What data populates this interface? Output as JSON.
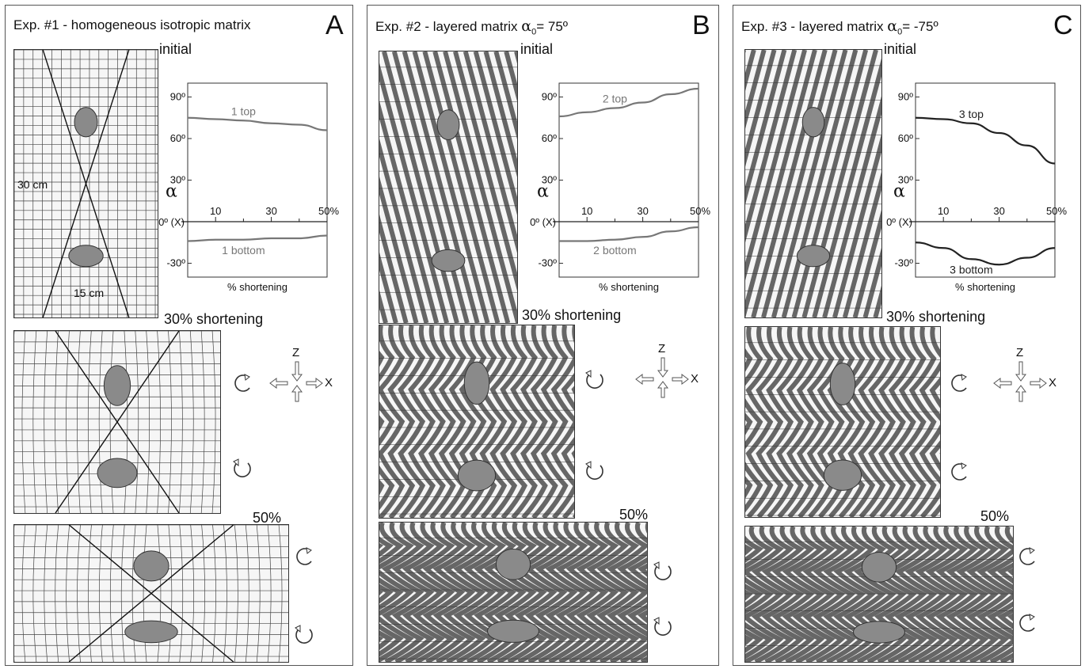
{
  "panels": [
    {
      "id": "A",
      "title": "Exp. #1 - homogeneous isotropic matrix",
      "letter": "A",
      "stages": {
        "initial": "initial",
        "mid": "30% shortening",
        "final": "50%"
      },
      "scale": {
        "height": "30 cm",
        "width": "15 cm"
      },
      "matrix": "isotropic-grid",
      "graph_color": "#777777",
      "graph_labels": {
        "top": "1 top",
        "bottom": "1 bottom"
      }
    },
    {
      "id": "B",
      "title_prefix": "Exp. #2 - layered matrix ",
      "title_alpha": "α",
      "title_sub": "0",
      "title_suffix": "= 75º",
      "letter": "B",
      "stages": {
        "initial": "initial",
        "mid": "30% shortening",
        "final": "50%"
      },
      "matrix": "layered-positive",
      "graph_color": "#777777",
      "graph_labels": {
        "top": "2 top",
        "bottom": "2 bottom"
      }
    },
    {
      "id": "C",
      "title_prefix": "Exp. #3 -  layered matrix ",
      "title_alpha": "α",
      "title_sub": "0",
      "title_suffix": "= -75º",
      "letter": "C",
      "stages": {
        "initial": "initial",
        "mid": "30% shortening",
        "final": "50%"
      },
      "matrix": "layered-negative",
      "graph_color": "#222222",
      "graph_labels": {
        "top": "3 top",
        "bottom": "3 bottom"
      }
    }
  ],
  "graph_axes": {
    "y_ticks": [
      "90º",
      "60º",
      "30º",
      "-30º"
    ],
    "x_ticks": [
      "10",
      "30",
      "50%"
    ],
    "origin_label": "0º (X)",
    "y_symbol": "α",
    "x_label": "% shortening"
  },
  "axis_indicator": {
    "z": "Z",
    "x": "X"
  },
  "chart_data": [
    {
      "type": "line",
      "x": [
        0,
        10,
        20,
        30,
        40,
        50
      ],
      "series": [
        {
          "name": "1 top",
          "values": [
            75,
            74,
            73,
            71,
            70,
            66
          ]
        },
        {
          "name": "1 bottom",
          "values": [
            -14,
            -13,
            -13,
            -12,
            -12,
            -10
          ]
        }
      ],
      "xlabel": "% shortening",
      "ylabel": "α",
      "xlim": [
        0,
        50
      ],
      "ylim": [
        -40,
        100
      ]
    },
    {
      "type": "line",
      "x": [
        0,
        10,
        20,
        30,
        40,
        50
      ],
      "series": [
        {
          "name": "2 top",
          "values": [
            76,
            79,
            82,
            86,
            92,
            96
          ]
        },
        {
          "name": "2 bottom",
          "values": [
            -14,
            -14,
            -13,
            -11,
            -7,
            -4
          ]
        }
      ],
      "xlabel": "% shortening",
      "ylabel": "α",
      "xlim": [
        0,
        50
      ],
      "ylim": [
        -40,
        100
      ]
    },
    {
      "type": "line",
      "x": [
        0,
        10,
        20,
        30,
        40,
        50
      ],
      "series": [
        {
          "name": "3 top",
          "values": [
            75,
            74,
            71,
            64,
            55,
            42
          ]
        },
        {
          "name": "3 bottom",
          "values": [
            -15,
            -19,
            -27,
            -31,
            -26,
            -19
          ]
        }
      ],
      "xlabel": "% shortening",
      "ylabel": "α",
      "xlim": [
        0,
        50
      ],
      "ylim": [
        -40,
        100
      ]
    }
  ]
}
